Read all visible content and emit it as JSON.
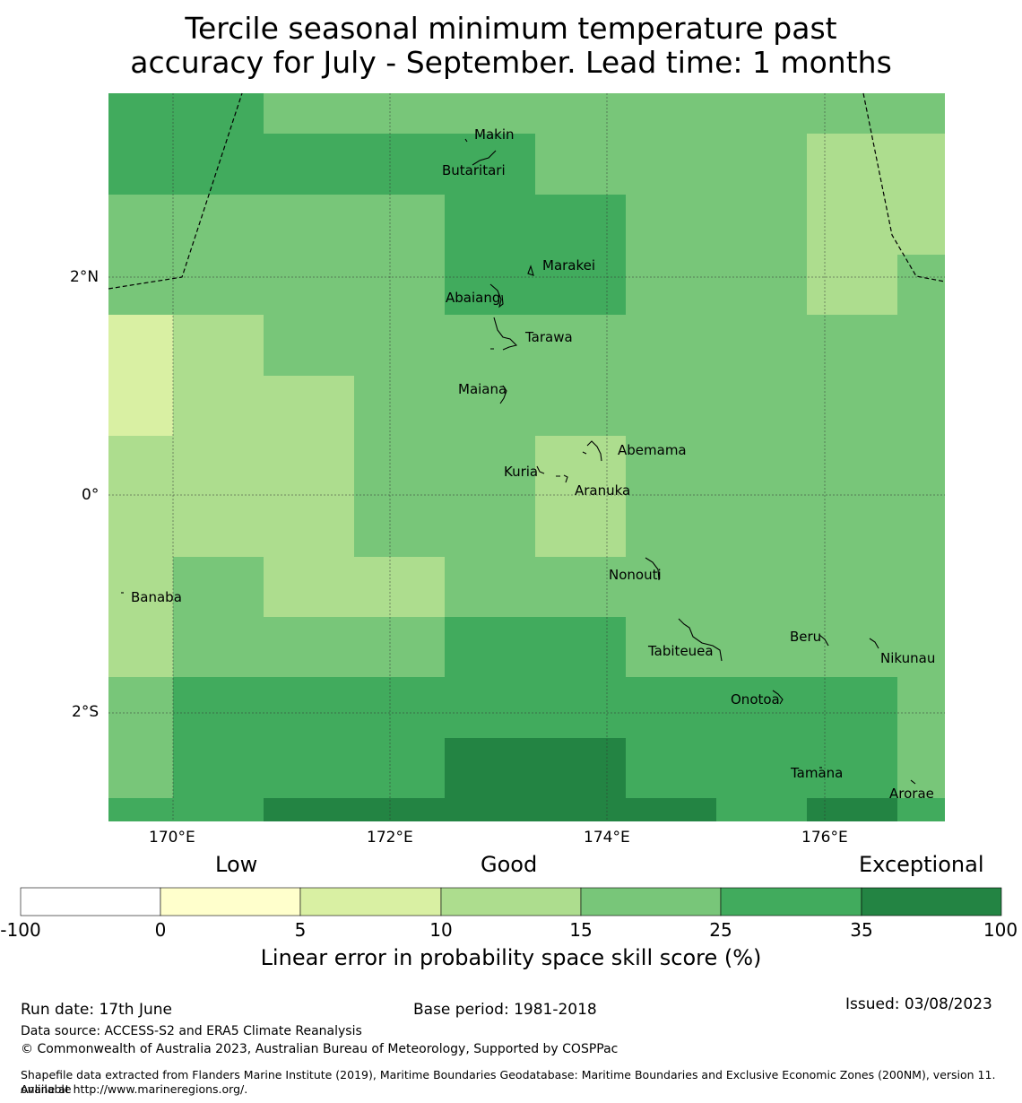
{
  "title_line1": "Tercile seasonal minimum temperature past",
  "title_line2": "accuracy for July - September. Lead time: 1 months",
  "map": {
    "lon_labels": [
      "170°E",
      "172°E",
      "174°E",
      "176°E"
    ],
    "lat_labels": [
      "2°N",
      "0°",
      "2°S"
    ],
    "lon_range": [
      169.4,
      177.1
    ],
    "lat_range": [
      -2.9,
      3.7
    ],
    "places": [
      {
        "name": "Makin",
        "lon": 173.0,
        "lat": 3.35
      },
      {
        "name": "Butaritari",
        "lon": 172.8,
        "lat": 3.1
      },
      {
        "name": "Marakei",
        "lon": 173.3,
        "lat": 2.0
      },
      {
        "name": "Abaiang",
        "lon": 173.0,
        "lat": 1.85
      },
      {
        "name": "Tarawa",
        "lon": 173.0,
        "lat": 1.4
      },
      {
        "name": "Maiana",
        "lon": 173.0,
        "lat": 0.9
      },
      {
        "name": "Abemama",
        "lon": 173.9,
        "lat": 0.4
      },
      {
        "name": "Kuria",
        "lon": 173.4,
        "lat": 0.2
      },
      {
        "name": "Aranuka",
        "lon": 173.6,
        "lat": 0.15
      },
      {
        "name": "Nonouti",
        "lon": 174.4,
        "lat": -0.6
      },
      {
        "name": "Banaba",
        "lon": 169.5,
        "lat": -0.85
      },
      {
        "name": "Tabiteuea",
        "lon": 174.8,
        "lat": -1.3
      },
      {
        "name": "Beru",
        "lon": 176.0,
        "lat": -1.3
      },
      {
        "name": "Nikunau",
        "lon": 176.45,
        "lat": -1.35
      },
      {
        "name": "Onotoa",
        "lon": 175.55,
        "lat": -1.8
      },
      {
        "name": "Tamana",
        "lon": 175.95,
        "lat": -2.5
      },
      {
        "name": "Arorae",
        "lon": 176.8,
        "lat": -2.65
      }
    ]
  },
  "colorbar": {
    "category_low": "Low",
    "category_good": "Good",
    "category_exceptional": "Exceptional",
    "bounds": [
      "-100",
      "0",
      "5",
      "10",
      "15",
      "25",
      "35",
      "100"
    ],
    "colors": [
      "#ffffff",
      "#ffffcc",
      "#d9f0a3",
      "#addd8e",
      "#78c679",
      "#41ab5d",
      "#238443"
    ],
    "label": "Linear error in probability space skill score (%)"
  },
  "footer": {
    "run_date": "Run date: 17th June",
    "base_period": "Base period: 1981-2018",
    "issued": "Issued: 03/08/2023",
    "data_source": "Data source: ACCESS-S2 and ERA5 Climate Reanalysis",
    "copyright": "© Commonwealth of Australia 2023, Australian Bureau of Meteorology, Supported by COSPPac",
    "shapefile_1": "Shapefile data extracted from Flanders Marine Institute (2019), Maritime Boundaries Geodatabase: Maritime Boundaries and Exclusive Economic Zones (200NM), version 11. Available",
    "shapefile_2": "online at http://www.marineregions.org/."
  }
}
